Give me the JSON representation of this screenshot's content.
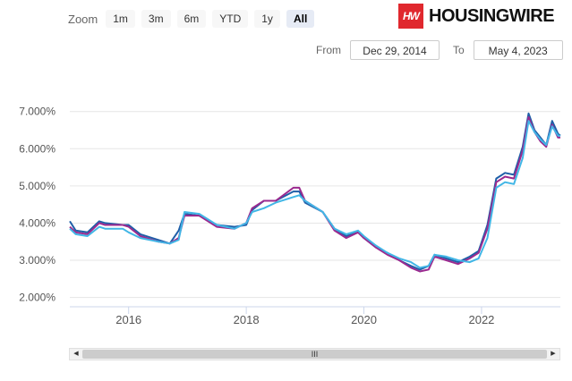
{
  "zoom": {
    "label": "Zoom",
    "buttons": [
      "1m",
      "3m",
      "6m",
      "YTD",
      "1y",
      "All"
    ],
    "active": "All"
  },
  "logo": {
    "mark": "HW",
    "text": "HOUSINGWIRE"
  },
  "range": {
    "from_label": "From",
    "from_value": "Dec 29, 2014",
    "to_label": "To",
    "to_value": "May 4, 2023"
  },
  "scrollbar": {
    "left_arrow": "◀",
    "right_arrow": "▶",
    "grip": "III"
  },
  "chart_data": {
    "type": "line",
    "title": "",
    "xlabel": "",
    "ylabel": "",
    "x_ticks": [
      "2016",
      "2018",
      "2020",
      "2022"
    ],
    "y_ticks": [
      "2.000%",
      "3.000%",
      "4.000%",
      "5.000%",
      "6.000%",
      "7.000%"
    ],
    "xlim": [
      2015.0,
      2023.34
    ],
    "ylim": [
      1.75,
      7.45
    ],
    "grid": "horizontal",
    "legend": "none",
    "series": [
      {
        "color": "#1f5fa8",
        "points": [
          [
            2015.0,
            4.05
          ],
          [
            2015.1,
            3.8
          ],
          [
            2015.3,
            3.75
          ],
          [
            2015.5,
            4.05
          ],
          [
            2015.6,
            4.0
          ],
          [
            2015.9,
            3.95
          ],
          [
            2016.0,
            3.95
          ],
          [
            2016.2,
            3.7
          ],
          [
            2016.5,
            3.55
          ],
          [
            2016.7,
            3.45
          ],
          [
            2016.85,
            3.8
          ],
          [
            2016.95,
            4.25
          ],
          [
            2017.2,
            4.2
          ],
          [
            2017.5,
            3.95
          ],
          [
            2017.8,
            3.9
          ],
          [
            2018.0,
            3.95
          ],
          [
            2018.1,
            4.35
          ],
          [
            2018.3,
            4.6
          ],
          [
            2018.5,
            4.6
          ],
          [
            2018.8,
            4.85
          ],
          [
            2018.9,
            4.85
          ],
          [
            2019.0,
            4.55
          ],
          [
            2019.3,
            4.3
          ],
          [
            2019.5,
            3.85
          ],
          [
            2019.7,
            3.65
          ],
          [
            2019.9,
            3.75
          ],
          [
            2020.0,
            3.6
          ],
          [
            2020.2,
            3.35
          ],
          [
            2020.4,
            3.2
          ],
          [
            2020.6,
            3.0
          ],
          [
            2020.8,
            2.85
          ],
          [
            2020.95,
            2.75
          ],
          [
            2021.1,
            2.85
          ],
          [
            2021.2,
            3.15
          ],
          [
            2021.4,
            3.05
          ],
          [
            2021.6,
            2.95
          ],
          [
            2021.8,
            3.1
          ],
          [
            2021.95,
            3.25
          ],
          [
            2022.1,
            3.95
          ],
          [
            2022.25,
            5.2
          ],
          [
            2022.4,
            5.35
          ],
          [
            2022.55,
            5.3
          ],
          [
            2022.7,
            6.05
          ],
          [
            2022.8,
            6.95
          ],
          [
            2022.9,
            6.5
          ],
          [
            2023.0,
            6.3
          ],
          [
            2023.1,
            6.1
          ],
          [
            2023.2,
            6.75
          ],
          [
            2023.3,
            6.4
          ],
          [
            2023.34,
            6.35
          ]
        ]
      },
      {
        "color": "#9b2a8f",
        "points": [
          [
            2015.0,
            3.9
          ],
          [
            2015.1,
            3.75
          ],
          [
            2015.3,
            3.7
          ],
          [
            2015.5,
            4.0
          ],
          [
            2015.6,
            3.95
          ],
          [
            2015.9,
            3.95
          ],
          [
            2016.0,
            3.9
          ],
          [
            2016.2,
            3.65
          ],
          [
            2016.5,
            3.5
          ],
          [
            2016.7,
            3.45
          ],
          [
            2016.85,
            3.6
          ],
          [
            2016.95,
            4.2
          ],
          [
            2017.2,
            4.2
          ],
          [
            2017.5,
            3.9
          ],
          [
            2017.8,
            3.85
          ],
          [
            2018.0,
            4.0
          ],
          [
            2018.1,
            4.4
          ],
          [
            2018.3,
            4.6
          ],
          [
            2018.5,
            4.6
          ],
          [
            2018.8,
            4.95
          ],
          [
            2018.9,
            4.95
          ],
          [
            2019.0,
            4.6
          ],
          [
            2019.3,
            4.3
          ],
          [
            2019.5,
            3.8
          ],
          [
            2019.7,
            3.6
          ],
          [
            2019.9,
            3.75
          ],
          [
            2020.0,
            3.6
          ],
          [
            2020.2,
            3.35
          ],
          [
            2020.4,
            3.15
          ],
          [
            2020.6,
            3.0
          ],
          [
            2020.8,
            2.8
          ],
          [
            2020.95,
            2.7
          ],
          [
            2021.1,
            2.75
          ],
          [
            2021.2,
            3.1
          ],
          [
            2021.4,
            3.0
          ],
          [
            2021.6,
            2.9
          ],
          [
            2021.8,
            3.05
          ],
          [
            2021.95,
            3.2
          ],
          [
            2022.1,
            3.85
          ],
          [
            2022.25,
            5.1
          ],
          [
            2022.4,
            5.25
          ],
          [
            2022.55,
            5.2
          ],
          [
            2022.7,
            5.95
          ],
          [
            2022.8,
            6.85
          ],
          [
            2022.9,
            6.45
          ],
          [
            2023.0,
            6.2
          ],
          [
            2023.1,
            6.05
          ],
          [
            2023.2,
            6.65
          ],
          [
            2023.3,
            6.3
          ],
          [
            2023.34,
            6.3
          ]
        ]
      },
      {
        "color": "#41b6e6",
        "points": [
          [
            2015.0,
            3.85
          ],
          [
            2015.1,
            3.7
          ],
          [
            2015.3,
            3.65
          ],
          [
            2015.5,
            3.9
          ],
          [
            2015.6,
            3.85
          ],
          [
            2015.9,
            3.85
          ],
          [
            2016.0,
            3.75
          ],
          [
            2016.2,
            3.6
          ],
          [
            2016.5,
            3.5
          ],
          [
            2016.7,
            3.45
          ],
          [
            2016.85,
            3.55
          ],
          [
            2016.95,
            4.3
          ],
          [
            2017.2,
            4.25
          ],
          [
            2017.5,
            3.95
          ],
          [
            2017.8,
            3.85
          ],
          [
            2018.0,
            4.0
          ],
          [
            2018.1,
            4.3
          ],
          [
            2018.3,
            4.4
          ],
          [
            2018.5,
            4.55
          ],
          [
            2018.8,
            4.7
          ],
          [
            2018.9,
            4.75
          ],
          [
            2019.0,
            4.6
          ],
          [
            2019.3,
            4.3
          ],
          [
            2019.5,
            3.85
          ],
          [
            2019.7,
            3.7
          ],
          [
            2019.9,
            3.8
          ],
          [
            2020.0,
            3.65
          ],
          [
            2020.2,
            3.4
          ],
          [
            2020.4,
            3.2
          ],
          [
            2020.6,
            3.05
          ],
          [
            2020.8,
            2.95
          ],
          [
            2020.95,
            2.8
          ],
          [
            2021.1,
            2.85
          ],
          [
            2021.2,
            3.15
          ],
          [
            2021.4,
            3.1
          ],
          [
            2021.6,
            3.0
          ],
          [
            2021.8,
            2.95
          ],
          [
            2021.95,
            3.05
          ],
          [
            2022.1,
            3.6
          ],
          [
            2022.25,
            4.95
          ],
          [
            2022.4,
            5.1
          ],
          [
            2022.55,
            5.05
          ],
          [
            2022.7,
            5.75
          ],
          [
            2022.8,
            6.75
          ],
          [
            2022.9,
            6.45
          ],
          [
            2023.0,
            6.25
          ],
          [
            2023.1,
            6.1
          ],
          [
            2023.2,
            6.6
          ],
          [
            2023.3,
            6.35
          ],
          [
            2023.34,
            6.35
          ]
        ]
      }
    ]
  }
}
